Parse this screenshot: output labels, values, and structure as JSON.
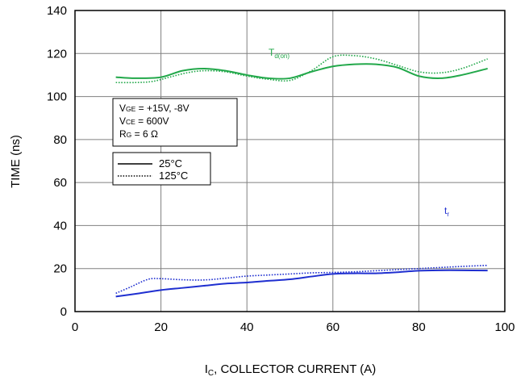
{
  "chart_data": {
    "type": "line",
    "xlabel_main": "I",
    "xlabel_sub": "C",
    "xlabel_rest": ", COLLECTOR CURRENT (A)",
    "ylabel": "TIME (ns)",
    "xlim": [
      0,
      100
    ],
    "ylim": [
      0,
      140
    ],
    "x_ticks": [
      0,
      20,
      40,
      60,
      80,
      100
    ],
    "y_ticks": [
      0,
      20,
      40,
      60,
      80,
      100,
      120,
      140
    ],
    "grid": true,
    "conditions": {
      "vge_sub": "GE",
      "vge_value": " = +15V, -8V",
      "vce_sub": "CE",
      "vce_value": " = 600V",
      "rg_sub": "G",
      "rg_value": " = 6 Ω"
    },
    "legend": [
      {
        "label": "25°C",
        "style": "solid"
      },
      {
        "label": "125°C",
        "style": "dotted"
      }
    ],
    "curve_labels": {
      "tdon_main": "T",
      "tdon_sub": "d(on)",
      "tr_main": "t",
      "tr_sub": "r"
    },
    "colors": {
      "tdon": "#22a84a",
      "tr": "#1f2fd0",
      "grid": "#808080"
    },
    "series": [
      {
        "group": "tdon",
        "temp": "25°C",
        "style": "solid",
        "color": "#22a84a",
        "x": [
          9.5,
          14,
          20,
          25,
          30,
          35,
          40,
          45,
          50,
          55,
          60,
          65,
          70,
          75,
          80,
          85,
          90,
          96
        ],
        "y": [
          109,
          108.5,
          109,
          112,
          113,
          112,
          110,
          108.5,
          108.5,
          111.5,
          114,
          115,
          115,
          113.5,
          109.5,
          108.5,
          110,
          113
        ]
      },
      {
        "group": "tdon",
        "temp": "125°C",
        "style": "dotted",
        "color": "#22a84a",
        "x": [
          9.5,
          14,
          18,
          22,
          26,
          30,
          35,
          40,
          45,
          50,
          55,
          60,
          65,
          70,
          75,
          80,
          85,
          90,
          96
        ],
        "y": [
          106.5,
          106.5,
          107,
          109,
          111,
          112,
          111.5,
          109.5,
          108,
          107.5,
          112,
          118.5,
          119,
          117.5,
          114.5,
          111.5,
          111,
          113,
          117.5
        ]
      },
      {
        "group": "tr",
        "temp": "25°C",
        "style": "solid",
        "color": "#1f2fd0",
        "x": [
          9.5,
          15,
          20,
          25,
          30,
          35,
          40,
          45,
          50,
          55,
          60,
          65,
          70,
          75,
          80,
          85,
          90,
          96
        ],
        "y": [
          7,
          8.5,
          10,
          11,
          12,
          13,
          13.5,
          14.3,
          15,
          16.3,
          17.5,
          17.8,
          17.8,
          18.3,
          19,
          19.2,
          19.2,
          19.1
        ]
      },
      {
        "group": "tr",
        "temp": "125°C",
        "style": "dotted",
        "color": "#1f2fd0",
        "x": [
          9.5,
          13,
          17,
          20,
          25,
          30,
          35,
          40,
          45,
          50,
          55,
          60,
          65,
          70,
          75,
          80,
          85,
          90,
          96
        ],
        "y": [
          8.5,
          11.5,
          15,
          15.3,
          14.8,
          14.7,
          15.5,
          16.5,
          17,
          17.5,
          18,
          18.2,
          18.5,
          19,
          19.5,
          20,
          20.5,
          21,
          21.5
        ]
      }
    ]
  }
}
